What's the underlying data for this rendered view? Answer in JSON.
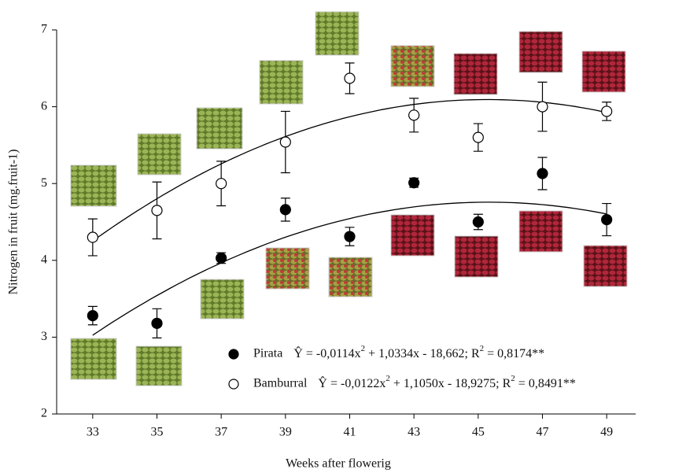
{
  "chart_data": {
    "type": "scatter",
    "x_label": "Weeks after flowerig",
    "y_label": "Nitrogen in fruit (mg.fruit-1)",
    "x": [
      33,
      35,
      37,
      39,
      41,
      43,
      45,
      47,
      49
    ],
    "xlim": [
      32,
      50
    ],
    "xticks": [
      33,
      35,
      37,
      39,
      41,
      43,
      45,
      47,
      49
    ],
    "ylim": [
      2,
      7
    ],
    "yticks": [
      2,
      3,
      4,
      5,
      6,
      7
    ],
    "grid": false,
    "series": [
      {
        "name": "Pirata",
        "marker": "filled",
        "color": "#000000",
        "values": [
          3.28,
          3.18,
          4.03,
          4.66,
          4.31,
          5.01,
          4.5,
          5.13,
          4.53
        ],
        "errors": [
          0.12,
          0.19,
          0.07,
          0.15,
          0.12,
          0.06,
          0.1,
          0.21,
          0.21
        ],
        "fit": {
          "a": -0.0114,
          "b": 1.0334,
          "c": -18.662
        },
        "equation": [
          "Ŷ = -0,0114x",
          "2",
          " + 1,0334x - 18,662; R",
          "2",
          " = 0,8174**"
        ]
      },
      {
        "name": "Bamburral",
        "marker": "open",
        "color": "#000000",
        "values": [
          4.3,
          4.65,
          5.0,
          5.54,
          6.37,
          5.89,
          5.6,
          6.0,
          5.94
        ],
        "errors": [
          0.24,
          0.37,
          0.29,
          0.4,
          0.2,
          0.22,
          0.18,
          0.32,
          0.12
        ],
        "fit": {
          "a": -0.0122,
          "b": 1.105,
          "c": -18.9275
        },
        "equation": [
          "Ŷ = -0,0122x",
          "2",
          " + 1,1050x - 18,9275; R",
          "2",
          " = 0,8491**"
        ]
      }
    ]
  }
}
